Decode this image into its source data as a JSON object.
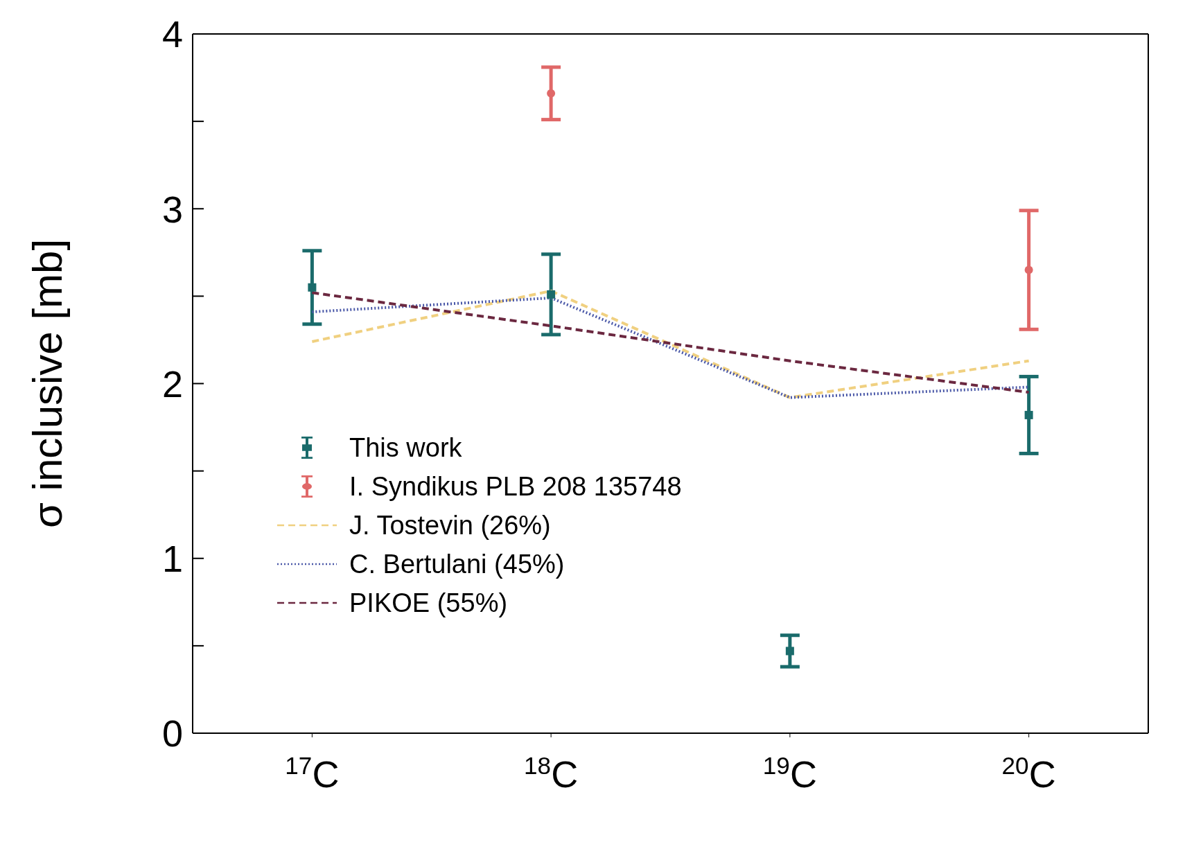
{
  "chart_data": {
    "type": "scatter",
    "ylabel": "σ inclusive [mb]",
    "categories": [
      "$^{17}$C",
      "$^{18}$C",
      "$^{19}$C",
      "$^{20}$C"
    ],
    "ylim": [
      0,
      4
    ],
    "yticks": [
      0,
      {
        "value": 0.5,
        "label": null
      },
      1,
      {
        "value": 1.5,
        "label": null
      },
      2,
      {
        "value": 2.5,
        "label": null
      },
      3,
      {
        "value": 3.5,
        "label": null
      },
      4
    ],
    "grid": false,
    "legend": "bottom left",
    "series": [
      {
        "name": "This work",
        "color": "#1a6b6b",
        "marker": "square",
        "values": [
          2.55,
          2.51,
          0.47,
          1.82
        ],
        "errors": [
          0.21,
          0.23,
          0.09,
          0.22
        ]
      },
      {
        "name": "I. Syndikus PLB 208 135748",
        "color": "#e06868",
        "marker": "circle",
        "values": [
          null,
          3.66,
          null,
          2.65
        ],
        "errors": [
          null,
          0.15,
          null,
          0.34
        ]
      },
      {
        "name": "J. Tostevin (26%)",
        "type": "line",
        "color": "#f0d080",
        "line_style": "dashed",
        "marker": "none",
        "values": [
          2.24,
          2.53,
          1.92,
          2.13
        ]
      },
      {
        "name": "C. Bertulani (45%)",
        "type": "line",
        "color": "#4a58a8",
        "line_style": "dotted",
        "marker": "none",
        "values": [
          2.41,
          2.49,
          1.92,
          1.98
        ]
      },
      {
        "name": "PIKOE (55%)",
        "type": "line",
        "color": "#6b2840",
        "line_style": "dashed",
        "marker": "none",
        "values": [
          2.52,
          2.33,
          2.13,
          1.95
        ]
      }
    ]
  }
}
